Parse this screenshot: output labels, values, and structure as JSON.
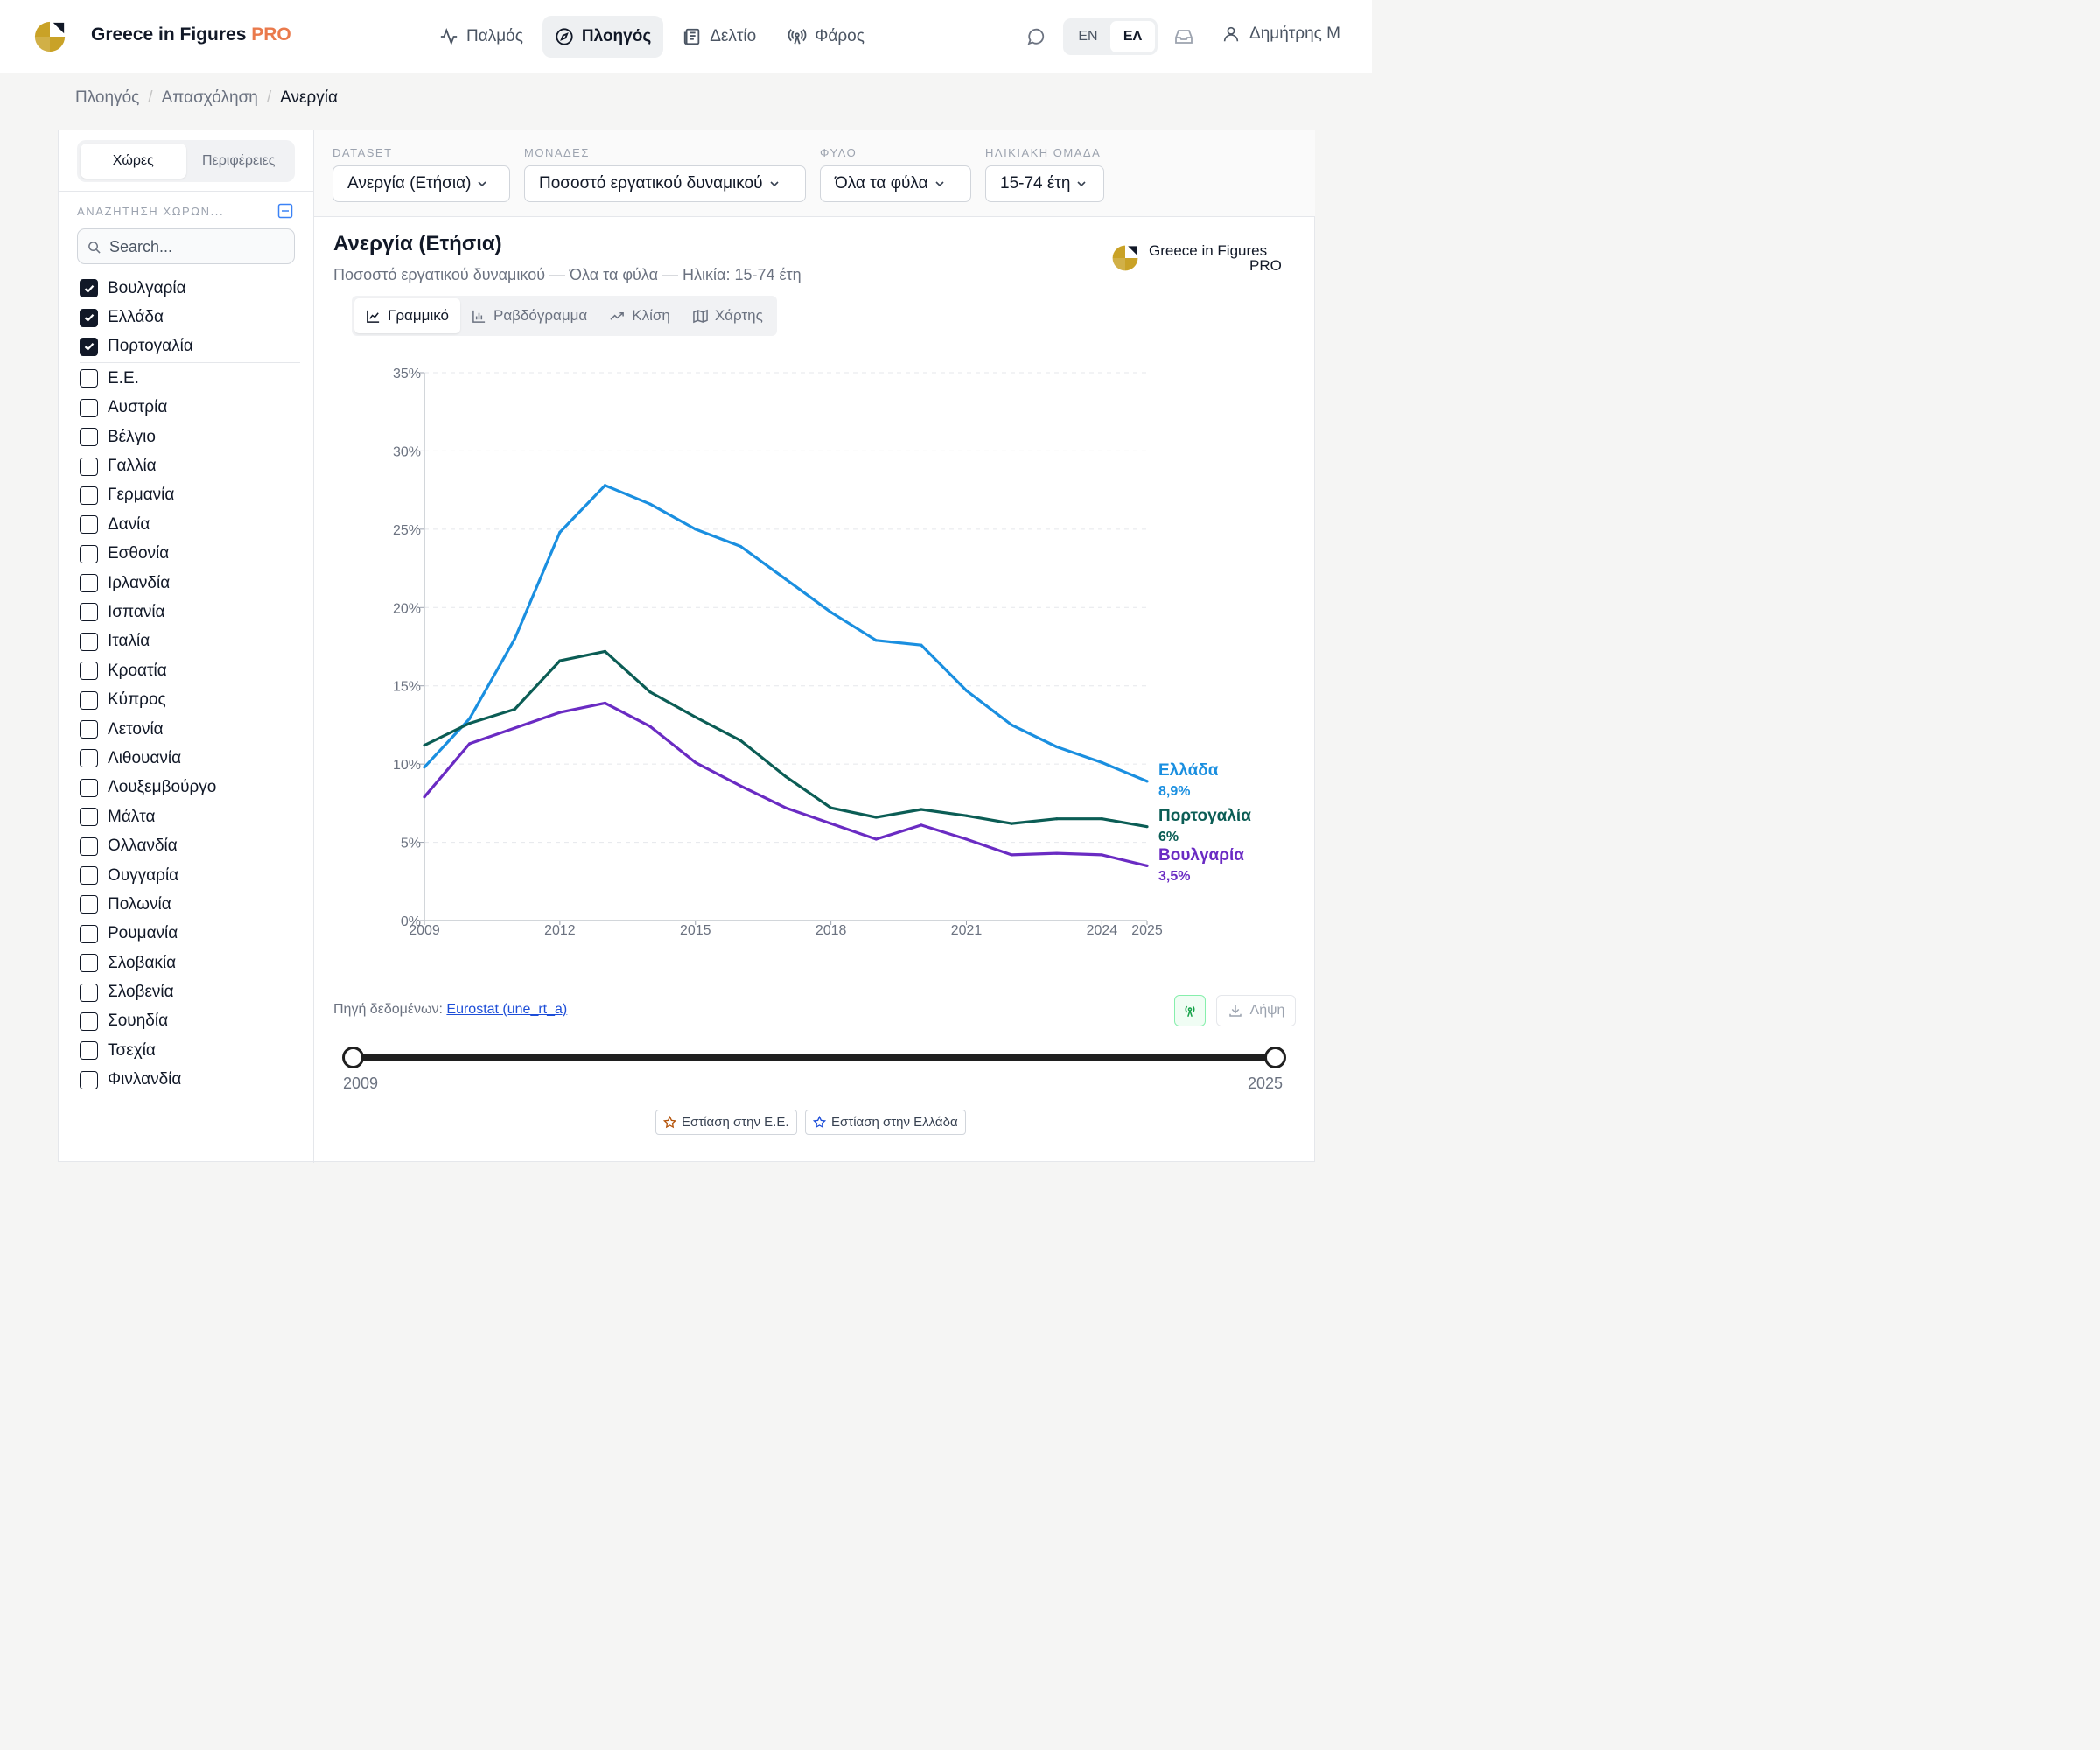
{
  "app": {
    "brand": "Greece in Figures",
    "brand_pro": "PRO"
  },
  "nav": [
    {
      "label": "Παλμός",
      "icon": "pulse-icon"
    },
    {
      "label": "Πλοηγός",
      "icon": "compass-icon",
      "active": true
    },
    {
      "label": "Δελτίο",
      "icon": "newspaper-icon"
    },
    {
      "label": "Φάρος",
      "icon": "broadcast-icon"
    }
  ],
  "lang": {
    "en": "EN",
    "el": "ΕΛ",
    "active": "ΕΛ"
  },
  "user": {
    "name": "Δημήτρης Μ"
  },
  "breadcrumb": {
    "items": [
      "Πλοηγός",
      "Απασχόληση"
    ],
    "current": "Ανεργία",
    "separator": "/"
  },
  "sidebar": {
    "segments": [
      "Χώρες",
      "Περιφέρειες"
    ],
    "active_segment": "Χώρες",
    "search_label": "ΑΝΑΖΗΤΗΣΗ ΧΩΡΩΝ...",
    "search_placeholder": "Search...",
    "selected": [
      "Βουλγαρία",
      "Ελλάδα",
      "Πορτογαλία"
    ],
    "countries": [
      "Ε.Ε.",
      "Αυστρία",
      "Βέλγιο",
      "Γαλλία",
      "Γερμανία",
      "Δανία",
      "Εσθονία",
      "Ιρλανδία",
      "Ισπανία",
      "Ιταλία",
      "Κροατία",
      "Κύπρος",
      "Λετονία",
      "Λιθουανία",
      "Λουξεμβούργο",
      "Μάλτα",
      "Ολλανδία",
      "Ουγγαρία",
      "Πολωνία",
      "Ρουμανία",
      "Σλοβακία",
      "Σλοβενία",
      "Σουηδία",
      "Τσεχία",
      "Φινλανδία"
    ]
  },
  "filters": {
    "dataset": {
      "label": "DATASET",
      "value": "Ανεργία (Ετήσια)"
    },
    "units": {
      "label": "ΜΟΝΑΔΕΣ",
      "value": "Ποσοστό εργατικού δυναμικού"
    },
    "sex": {
      "label": "ΦΥΛΟ",
      "value": "Όλα τα φύλα"
    },
    "age": {
      "label": "ΗΛΙΚΙΑΚΗ ΟΜΑΔΑ",
      "value": "15-74 έτη"
    }
  },
  "chart_header": {
    "title": "Ανεργία (Ετήσια)",
    "subtitle": "Ποσοστό εργατικού δυναμικού — Όλα τα φύλα — Ηλικία: 15-74 έτη",
    "watermark_line1": "Greece in Figures",
    "watermark_line2": "PRO"
  },
  "chart_tabs": [
    {
      "label": "Γραμμικό",
      "icon": "line-chart-icon",
      "active": true
    },
    {
      "label": "Ραβδόγραμμα",
      "icon": "bar-chart-icon"
    },
    {
      "label": "Κλίση",
      "icon": "trend-icon"
    },
    {
      "label": "Χάρτης",
      "icon": "map-icon"
    }
  ],
  "chart_data": {
    "type": "line",
    "x": [
      2009,
      2010,
      2011,
      2012,
      2013,
      2014,
      2015,
      2016,
      2017,
      2018,
      2019,
      2020,
      2021,
      2022,
      2023,
      2024,
      2025
    ],
    "x_ticks": [
      "2009",
      "2012",
      "2015",
      "2018",
      "2021",
      "2024",
      "2025"
    ],
    "y_ticks": [
      "0%",
      "5%",
      "10%",
      "15%",
      "20%",
      "25%",
      "30%",
      "35%"
    ],
    "ylim": [
      0,
      35
    ],
    "grid": true,
    "series": [
      {
        "name": "Ελλάδα",
        "color": "#1a8fe0",
        "end_label": "8,9%",
        "values": [
          9.8,
          12.9,
          18.0,
          24.8,
          27.8,
          26.6,
          25.0,
          23.9,
          21.8,
          19.7,
          17.9,
          17.6,
          14.7,
          12.5,
          11.1,
          10.1,
          8.9
        ]
      },
      {
        "name": "Πορτογαλία",
        "color": "#0b5d55",
        "end_label": "6%",
        "values": [
          11.2,
          12.6,
          13.5,
          16.6,
          17.2,
          14.6,
          13.0,
          11.5,
          9.2,
          7.2,
          6.6,
          7.1,
          6.7,
          6.2,
          6.5,
          6.5,
          6.0
        ]
      },
      {
        "name": "Βουλγαρία",
        "color": "#6a2bc3",
        "end_label": "3,5%",
        "values": [
          7.9,
          11.3,
          12.3,
          13.3,
          13.9,
          12.4,
          10.1,
          8.6,
          7.2,
          6.2,
          5.2,
          6.1,
          5.2,
          4.2,
          4.3,
          4.2,
          3.5
        ]
      }
    ]
  },
  "source": {
    "label": "Πηγή δεδομένων:",
    "link": "Eurostat (une_rt_a)"
  },
  "download_label": "Λήψη",
  "range": {
    "min": "2009",
    "max": "2025"
  },
  "focus": {
    "eu": "Εστίαση στην Ε.Ε.",
    "greece": "Εστίαση στην Ελλάδα"
  },
  "colors": {
    "accent": "#ea7a4c",
    "logo": "#c9a227",
    "greece": "#1a8fe0",
    "portugal": "#0b5d55",
    "bulgaria": "#6a2bc3"
  }
}
